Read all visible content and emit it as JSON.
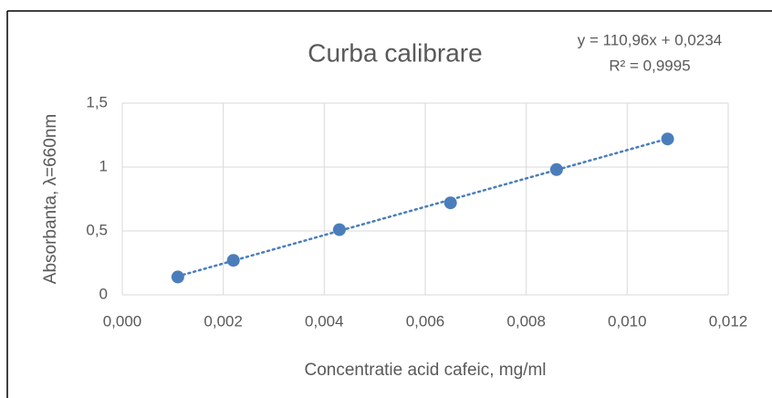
{
  "chart_data": {
    "type": "scatter",
    "title": "Curba calibrare",
    "x_label": "Concentratie acid cafeic, mg/ml",
    "y_label": "Absorbanta, λ=660nm",
    "x": [
      0.0011,
      0.0022,
      0.0043,
      0.0065,
      0.0086,
      0.0108
    ],
    "values": [
      0.14,
      0.27,
      0.51,
      0.72,
      0.98,
      1.22
    ],
    "color": "#4a7ebb",
    "xlim": [
      0,
      0.012
    ],
    "xticks": [
      {
        "value": 0,
        "label": "0,000"
      },
      {
        "value": 0.002,
        "label": "0,002"
      },
      {
        "value": 0.004,
        "label": "0,004"
      },
      {
        "value": 0.006,
        "label": "0,006"
      },
      {
        "value": 0.008,
        "label": "0,008"
      },
      {
        "value": 0.01,
        "label": "0,010"
      },
      {
        "value": 0.012,
        "label": "0,012"
      }
    ],
    "ylim": [
      0,
      1.5
    ],
    "yticks": [
      0,
      {
        "value": 0.5,
        "label": "0,5"
      },
      1,
      {
        "value": 1.5,
        "label": "1,5"
      }
    ],
    "grid": true,
    "trendline": {
      "slope": 110.96,
      "intercept": 0.0234,
      "equation": "y = 110,96x + 0,0234",
      "r2": "R² = 0,9995"
    }
  }
}
